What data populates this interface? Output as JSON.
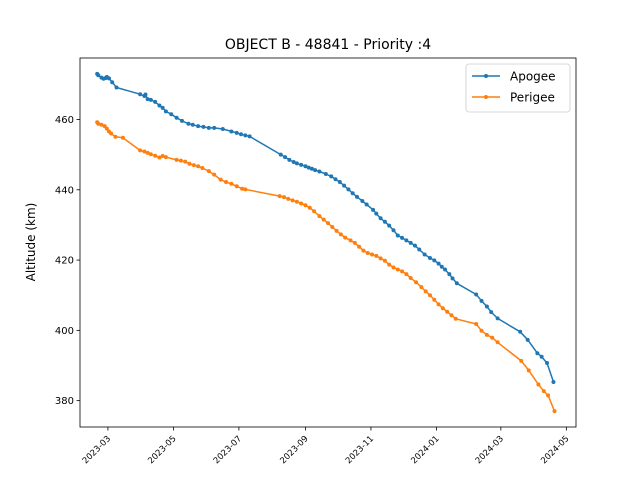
{
  "chart_data": {
    "type": "line",
    "title": "OBJECT B - 48841 - Priority :4",
    "xlabel": "",
    "ylabel": "Altitude (km)",
    "x_axis": {
      "kind": "date",
      "range": [
        "2023-02-03",
        "2024-05-10"
      ],
      "ticks": [
        "2023-03-01",
        "2023-05-01",
        "2023-07-01",
        "2023-09-01",
        "2023-11-01",
        "2024-01-01",
        "2024-03-01",
        "2024-05-01"
      ],
      "tick_labels": [
        "2023-03",
        "2023-05",
        "2023-07",
        "2023-09",
        "2023-11",
        "2024-01",
        "2024-03",
        "2024-05"
      ]
    },
    "y_axis": {
      "range": [
        372.5,
        477.5
      ],
      "ticks": [
        380,
        400,
        420,
        440,
        460
      ],
      "tick_labels": [
        "380",
        "400",
        "420",
        "440",
        "460"
      ]
    },
    "legend": {
      "position": "top-right"
    },
    "grid": false,
    "series": [
      {
        "name": "Apogee",
        "color": "#1f77b4",
        "points": [
          [
            "2023-02-19",
            473.0
          ],
          [
            "2023-02-20",
            472.6
          ],
          [
            "2023-02-23",
            471.9
          ],
          [
            "2023-02-25",
            471.6
          ],
          [
            "2023-02-27",
            471.8
          ],
          [
            "2023-02-28",
            472.1
          ],
          [
            "2023-03-02",
            471.7
          ],
          [
            "2023-03-05",
            470.6
          ],
          [
            "2023-03-09",
            469.1
          ],
          [
            "2023-03-31",
            467.2
          ],
          [
            "2023-04-04",
            466.7
          ],
          [
            "2023-04-05",
            467.1
          ],
          [
            "2023-04-07",
            465.8
          ],
          [
            "2023-04-10",
            465.6
          ],
          [
            "2023-04-14",
            465.0
          ],
          [
            "2023-04-18",
            464.0
          ],
          [
            "2023-04-21",
            463.3
          ],
          [
            "2023-04-24",
            462.3
          ],
          [
            "2023-04-29",
            461.5
          ],
          [
            "2023-05-04",
            460.5
          ],
          [
            "2023-05-09",
            459.6
          ],
          [
            "2023-05-15",
            458.8
          ],
          [
            "2023-05-19",
            458.5
          ],
          [
            "2023-05-24",
            458.1
          ],
          [
            "2023-05-29",
            457.9
          ],
          [
            "2023-06-03",
            457.6
          ],
          [
            "2023-06-08",
            457.6
          ],
          [
            "2023-06-16",
            457.3
          ],
          [
            "2023-06-24",
            456.6
          ],
          [
            "2023-06-29",
            456.2
          ],
          [
            "2023-07-03",
            455.8
          ],
          [
            "2023-07-07",
            455.5
          ],
          [
            "2023-07-11",
            455.2
          ],
          [
            "2023-08-09",
            450.0
          ],
          [
            "2023-08-13",
            449.3
          ],
          [
            "2023-08-17",
            448.5
          ],
          [
            "2023-08-21",
            447.9
          ],
          [
            "2023-08-24",
            447.5
          ],
          [
            "2023-08-28",
            447.1
          ],
          [
            "2023-09-01",
            446.7
          ],
          [
            "2023-09-04",
            446.3
          ],
          [
            "2023-09-07",
            446.0
          ],
          [
            "2023-09-10",
            445.6
          ],
          [
            "2023-09-14",
            445.2
          ],
          [
            "2023-09-20",
            444.5
          ],
          [
            "2023-09-25",
            443.8
          ],
          [
            "2023-09-29",
            443.0
          ],
          [
            "2023-10-03",
            442.2
          ],
          [
            "2023-10-07",
            441.2
          ],
          [
            "2023-10-11",
            440.1
          ],
          [
            "2023-10-15",
            439.0
          ],
          [
            "2023-10-19",
            438.0
          ],
          [
            "2023-10-24",
            436.8
          ],
          [
            "2023-10-28",
            435.8
          ],
          [
            "2023-11-03",
            434.3
          ],
          [
            "2023-11-06",
            433.2
          ],
          [
            "2023-11-10",
            431.9
          ],
          [
            "2023-11-14",
            430.9
          ],
          [
            "2023-11-18",
            429.8
          ],
          [
            "2023-11-22",
            428.5
          ],
          [
            "2023-11-26",
            427.0
          ],
          [
            "2023-11-30",
            426.3
          ],
          [
            "2023-12-04",
            425.6
          ],
          [
            "2023-12-08",
            424.9
          ],
          [
            "2023-12-12",
            424.1
          ],
          [
            "2023-12-16",
            423.0
          ],
          [
            "2023-12-21",
            421.6
          ],
          [
            "2023-12-26",
            420.6
          ],
          [
            "2023-12-30",
            419.9
          ],
          [
            "2024-01-03",
            419.0
          ],
          [
            "2024-01-06",
            418.1
          ],
          [
            "2024-01-09",
            417.3
          ],
          [
            "2024-01-13",
            416.0
          ],
          [
            "2024-01-16",
            414.8
          ],
          [
            "2024-01-20",
            413.4
          ],
          [
            "2024-02-07",
            410.2
          ],
          [
            "2024-02-12",
            408.4
          ],
          [
            "2024-02-17",
            406.8
          ],
          [
            "2024-02-21",
            405.2
          ],
          [
            "2024-02-27",
            403.4
          ],
          [
            "2024-03-19",
            399.6
          ],
          [
            "2024-03-26",
            397.3
          ],
          [
            "2024-04-04",
            393.5
          ],
          [
            "2024-04-08",
            392.5
          ],
          [
            "2024-04-13",
            390.7
          ],
          [
            "2024-04-19",
            385.3
          ]
        ]
      },
      {
        "name": "Perigee",
        "color": "#ff7f0e",
        "points": [
          [
            "2023-02-19",
            459.2
          ],
          [
            "2023-02-20",
            458.8
          ],
          [
            "2023-02-23",
            458.5
          ],
          [
            "2023-02-26",
            458.1
          ],
          [
            "2023-02-28",
            457.4
          ],
          [
            "2023-03-02",
            456.6
          ],
          [
            "2023-03-04",
            456.0
          ],
          [
            "2023-03-08",
            455.1
          ],
          [
            "2023-03-15",
            454.8
          ],
          [
            "2023-03-31",
            451.2
          ],
          [
            "2023-04-04",
            450.9
          ],
          [
            "2023-04-07",
            450.5
          ],
          [
            "2023-04-10",
            450.1
          ],
          [
            "2023-04-14",
            449.7
          ],
          [
            "2023-04-18",
            449.2
          ],
          [
            "2023-04-21",
            449.6
          ],
          [
            "2023-04-24",
            449.3
          ],
          [
            "2023-05-04",
            448.5
          ],
          [
            "2023-05-08",
            448.3
          ],
          [
            "2023-05-12",
            448.0
          ],
          [
            "2023-05-16",
            447.4
          ],
          [
            "2023-05-20",
            447.0
          ],
          [
            "2023-05-24",
            446.7
          ],
          [
            "2023-05-28",
            446.2
          ],
          [
            "2023-06-03",
            445.3
          ],
          [
            "2023-06-08",
            444.3
          ],
          [
            "2023-06-14",
            442.9
          ],
          [
            "2023-06-19",
            442.2
          ],
          [
            "2023-06-24",
            441.7
          ],
          [
            "2023-06-29",
            441.0
          ],
          [
            "2023-07-04",
            440.3
          ],
          [
            "2023-07-07",
            440.1
          ],
          [
            "2023-08-08",
            438.2
          ],
          [
            "2023-08-12",
            437.9
          ],
          [
            "2023-08-16",
            437.4
          ],
          [
            "2023-08-20",
            437.0
          ],
          [
            "2023-08-24",
            436.6
          ],
          [
            "2023-08-28",
            436.1
          ],
          [
            "2023-09-01",
            435.6
          ],
          [
            "2023-09-05",
            434.9
          ],
          [
            "2023-09-09",
            433.9
          ],
          [
            "2023-09-14",
            432.5
          ],
          [
            "2023-09-18",
            431.5
          ],
          [
            "2023-09-22",
            430.5
          ],
          [
            "2023-09-26",
            429.4
          ],
          [
            "2023-09-30",
            428.3
          ],
          [
            "2023-10-04",
            427.3
          ],
          [
            "2023-10-08",
            426.4
          ],
          [
            "2023-10-13",
            425.6
          ],
          [
            "2023-10-17",
            424.9
          ],
          [
            "2023-10-21",
            423.8
          ],
          [
            "2023-10-25",
            422.7
          ],
          [
            "2023-10-29",
            422.0
          ],
          [
            "2023-11-02",
            421.6
          ],
          [
            "2023-11-06",
            421.2
          ],
          [
            "2023-11-10",
            420.5
          ],
          [
            "2023-11-14",
            419.8
          ],
          [
            "2023-11-18",
            418.7
          ],
          [
            "2023-11-22",
            417.9
          ],
          [
            "2023-11-26",
            417.3
          ],
          [
            "2023-11-30",
            416.8
          ],
          [
            "2023-12-04",
            416.0
          ],
          [
            "2023-12-08",
            414.9
          ],
          [
            "2023-12-13",
            413.7
          ],
          [
            "2023-12-18",
            412.3
          ],
          [
            "2023-12-22",
            411.1
          ],
          [
            "2023-12-26",
            410.0
          ],
          [
            "2023-12-30",
            408.7
          ],
          [
            "2024-01-03",
            407.4
          ],
          [
            "2024-01-07",
            406.3
          ],
          [
            "2024-01-11",
            405.3
          ],
          [
            "2024-01-15",
            404.3
          ],
          [
            "2024-01-19",
            403.3
          ],
          [
            "2024-02-07",
            401.8
          ],
          [
            "2024-02-12",
            399.9
          ],
          [
            "2024-02-17",
            398.7
          ],
          [
            "2024-02-22",
            397.9
          ],
          [
            "2024-02-27",
            396.6
          ],
          [
            "2024-03-20",
            391.3
          ],
          [
            "2024-03-27",
            388.6
          ],
          [
            "2024-04-05",
            384.6
          ],
          [
            "2024-04-10",
            382.7
          ],
          [
            "2024-04-14",
            381.5
          ],
          [
            "2024-04-20",
            377.0
          ]
        ]
      }
    ]
  }
}
